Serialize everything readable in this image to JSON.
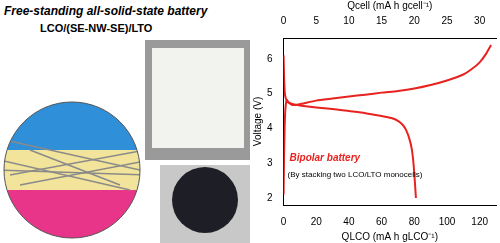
{
  "panel": {
    "title": "Free-standing all-solid-state battery",
    "subtitle": "LCO/(SE-NW-SE)/LTO"
  },
  "chart_data": {
    "type": "line",
    "x_label": "QLCO (mA h gLCO⁻¹)",
    "x2_label": "Qcell (mA h gcell⁻¹)",
    "y_label": "Voltage (V)",
    "xlim": [
      0,
      130
    ],
    "xticks": [
      0,
      20,
      40,
      60,
      80,
      100,
      120
    ],
    "x2lim": [
      0,
      32.5
    ],
    "x2ticks": [
      0,
      5,
      10,
      15,
      20,
      25,
      30
    ],
    "ylim": [
      1.8,
      6.6
    ],
    "yticks": [
      2,
      3,
      4,
      5,
      6
    ],
    "grid": false,
    "annotations": [
      "Bipolar battery",
      "(By stacking two LCO/LTO monocells)"
    ],
    "series": [
      {
        "color": "#e8231f",
        "x": [
          0,
          0.3,
          0.7,
          1.2,
          2,
          3,
          5,
          8,
          12,
          20,
          30,
          40,
          50,
          60,
          70,
          80,
          90,
          100,
          110,
          115,
          120,
          124,
          127
        ],
        "values": [
          2.1,
          3.2,
          4.1,
          4.6,
          4.82,
          4.75,
          4.68,
          4.68,
          4.72,
          4.8,
          4.86,
          4.92,
          4.97,
          5.03,
          5.08,
          5.15,
          5.25,
          5.38,
          5.55,
          5.7,
          5.9,
          6.15,
          6.4
        ]
      },
      {
        "color": "#e8231f",
        "x": [
          0,
          0.3,
          0.8,
          1.5,
          3,
          6,
          10,
          20,
          30,
          40,
          50,
          60,
          66,
          70,
          73,
          75,
          77,
          78.5,
          79.5,
          80.3,
          81
        ],
        "values": [
          6.1,
          5.5,
          5.0,
          4.85,
          4.75,
          4.7,
          4.66,
          4.6,
          4.56,
          4.5,
          4.44,
          4.36,
          4.3,
          4.22,
          4.1,
          3.95,
          3.7,
          3.4,
          3.0,
          2.5,
          2.0
        ]
      }
    ]
  }
}
